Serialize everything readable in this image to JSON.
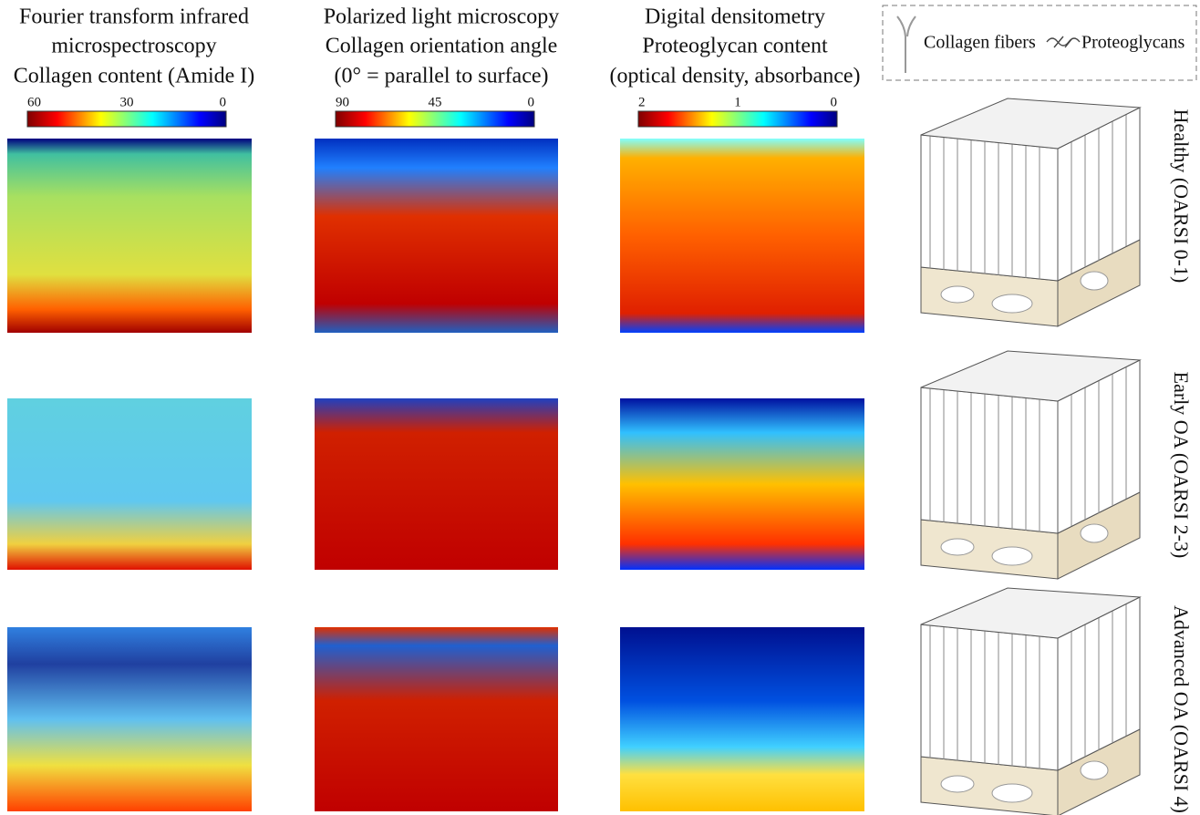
{
  "columns": [
    {
      "lines": [
        "Fourier transform infrared",
        "microspectroscopy",
        "Collagen content (Amide I)"
      ],
      "colorbar": [
        60,
        30,
        0
      ]
    },
    {
      "lines": [
        "Polarized light microscopy",
        "Collagen orientation angle",
        "(0° = parallel to surface)"
      ],
      "colorbar": [
        90,
        45,
        0
      ]
    },
    {
      "lines": [
        "Digital densitometry",
        "Proteoglycan content",
        "(optical density, absorbance)"
      ],
      "colorbar": [
        2,
        1,
        0
      ]
    }
  ],
  "legend": {
    "fibers": "Collagen fibers",
    "proteoglycans": "Proteoglycans"
  },
  "rows": [
    "Healthy (OARSI 0-1)",
    "Early OA (OARSI 2-3)",
    "Advanced OA (OARSI 4)"
  ]
}
